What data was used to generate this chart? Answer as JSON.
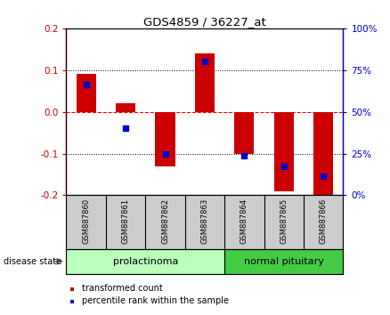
{
  "title": "GDS4859 / 36227_at",
  "samples": [
    "GSM887860",
    "GSM887861",
    "GSM887862",
    "GSM887863",
    "GSM887864",
    "GSM887865",
    "GSM887866"
  ],
  "red_values": [
    0.09,
    0.02,
    -0.13,
    0.14,
    -0.1,
    -0.19,
    -0.205
  ],
  "blue_percentiles": [
    0.065,
    -0.04,
    -0.1,
    0.12,
    -0.105,
    -0.13,
    -0.155
  ],
  "ylim": [
    -0.2,
    0.2
  ],
  "yticks_left": [
    -0.2,
    -0.1,
    0.0,
    0.1,
    0.2
  ],
  "yticks_right": [
    0,
    25,
    50,
    75,
    100
  ],
  "yticks_right_pos": [
    -0.2,
    -0.1,
    0.0,
    0.1,
    0.2
  ],
  "groups": [
    {
      "label": "prolactinoma",
      "start": 0,
      "end": 3,
      "color": "#bbffbb"
    },
    {
      "label": "normal pituitary",
      "start": 4,
      "end": 6,
      "color": "#44cc44"
    }
  ],
  "bar_color": "#cc0000",
  "dot_color": "#0000cc",
  "zero_line_color": "#ff0000",
  "grid_color": "#000000",
  "tick_label_color_left": "#cc0000",
  "tick_label_color_right": "#0000cc",
  "title_color": "#000000",
  "bg_plot": "#ffffff",
  "bg_samples": "#cccccc",
  "bar_width": 0.5,
  "legend_labels": [
    "transformed count",
    "percentile rank within the sample"
  ],
  "legend_colors": [
    "#cc0000",
    "#0000cc"
  ],
  "disease_state_label": "disease state"
}
